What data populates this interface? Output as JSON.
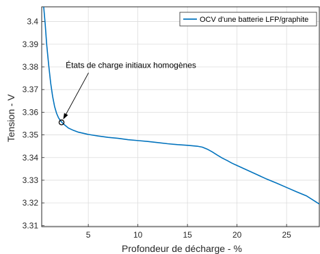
{
  "chart_data": {
    "type": "line",
    "xlabel": "Profondeur de décharge - %",
    "ylabel": "Tension - V",
    "xlim": [
      0.3,
      28.3
    ],
    "ylim": [
      3.3095,
      3.4065
    ],
    "xticks": [
      5,
      10,
      15,
      20,
      25
    ],
    "yticks": [
      3.31,
      3.32,
      3.33,
      3.34,
      3.35,
      3.36,
      3.37,
      3.38,
      3.39,
      3.4
    ],
    "grid": true,
    "legend_position": "top-right",
    "series": [
      {
        "name": "OCV d'une batterie LFP/graphite",
        "color": "#0072BD",
        "x": [
          0.5,
          0.65,
          0.8,
          1.0,
          1.2,
          1.4,
          1.6,
          1.8,
          2.0,
          2.2,
          2.5,
          3.0,
          3.5,
          4.0,
          5.0,
          6.0,
          7.0,
          8.0,
          9.0,
          10.0,
          11.0,
          12.0,
          13.0,
          14.0,
          15.0,
          16.0,
          16.5,
          17.0,
          17.5,
          18.0,
          18.5,
          19.0,
          19.5,
          20.0,
          21.0,
          22.0,
          23.0,
          24.0,
          25.0,
          26.0,
          27.0,
          28.3
        ],
        "y": [
          3.407,
          3.399,
          3.39,
          3.381,
          3.373,
          3.367,
          3.3625,
          3.3595,
          3.3575,
          3.3562,
          3.3548,
          3.353,
          3.352,
          3.3512,
          3.3502,
          3.3495,
          3.3489,
          3.3485,
          3.3479,
          3.3475,
          3.3471,
          3.3466,
          3.3461,
          3.3457,
          3.3454,
          3.345,
          3.3446,
          3.3437,
          3.3425,
          3.3411,
          3.3398,
          3.3387,
          3.3375,
          3.3365,
          3.3345,
          3.3325,
          3.3305,
          3.3287,
          3.3268,
          3.3249,
          3.3231,
          3.3195
        ]
      }
    ],
    "annotations": [
      {
        "text": "États de charge initiaux homogènes",
        "point": [
          2.3,
          3.3555
        ],
        "text_at": [
          9.3,
          3.3795
        ]
      }
    ]
  }
}
